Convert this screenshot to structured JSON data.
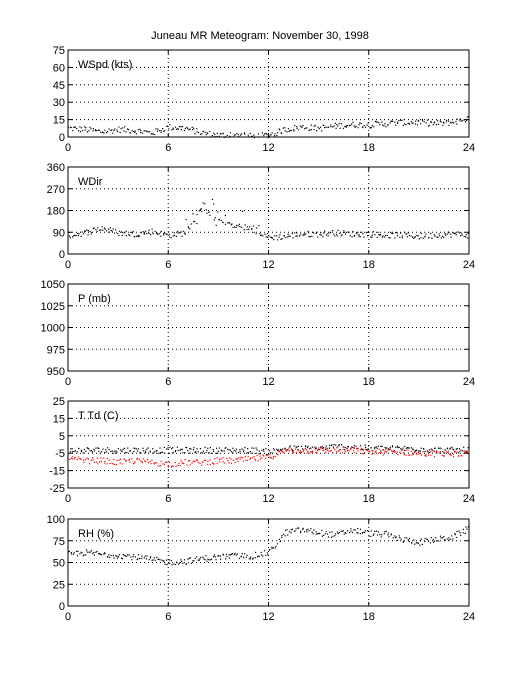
{
  "figure": {
    "title": "Juneau MR Meteogram:   November 30, 1998"
  },
  "chart_data": [
    {
      "type": "scatter",
      "label": "WSpd (kts)",
      "xlim": [
        0,
        24
      ],
      "xticks": [
        0,
        6,
        12,
        18,
        24
      ],
      "ylim": [
        0,
        75
      ],
      "yticks": [
        0,
        15,
        30,
        45,
        60,
        75
      ],
      "grid": true,
      "series": [
        {
          "color": "#000000",
          "x": [
            0,
            1,
            2,
            3,
            4,
            5,
            6,
            7,
            8,
            9,
            10,
            11,
            12,
            13,
            14,
            15,
            16,
            17,
            18,
            19,
            20,
            21,
            22,
            23,
            24
          ],
          "y": [
            8,
            7,
            5,
            7,
            6,
            4,
            9,
            8,
            4,
            2,
            2,
            1,
            2,
            7,
            9,
            8,
            10,
            11,
            11,
            12,
            13,
            13,
            12,
            13,
            17
          ]
        }
      ]
    },
    {
      "type": "scatter",
      "label": "WDir",
      "xlim": [
        0,
        24
      ],
      "xticks": [
        0,
        6,
        12,
        18,
        24
      ],
      "ylim": [
        0,
        360
      ],
      "yticks": [
        0,
        90,
        180,
        270,
        360
      ],
      "grid": true,
      "series": [
        {
          "color": "#000000",
          "x": [
            0,
            1,
            2,
            3,
            4,
            5,
            6,
            7,
            8,
            9,
            10,
            11,
            12,
            13,
            14,
            15,
            16,
            17,
            18,
            19,
            20,
            21,
            22,
            23,
            24
          ],
          "y": [
            80,
            90,
            110,
            90,
            85,
            95,
            80,
            90,
            190,
            140,
            120,
            110,
            70,
            75,
            85,
            85,
            90,
            85,
            85,
            80,
            80,
            75,
            80,
            85,
            80
          ]
        }
      ]
    },
    {
      "type": "scatter",
      "label": "P (mb)",
      "xlim": [
        0,
        24
      ],
      "xticks": [
        0,
        6,
        12,
        18,
        24
      ],
      "ylim": [
        950,
        1050
      ],
      "yticks": [
        950,
        975,
        1000,
        1025,
        1050
      ],
      "grid": true,
      "series": []
    },
    {
      "type": "scatter",
      "label": "T Td (C)",
      "xlim": [
        0,
        24
      ],
      "xticks": [
        0,
        6,
        12,
        18,
        24
      ],
      "ylim": [
        -25,
        25
      ],
      "yticks": [
        -25,
        -15,
        -5,
        5,
        15,
        25
      ],
      "grid": true,
      "series": [
        {
          "color": "#000000",
          "x": [
            0,
            1,
            2,
            3,
            4,
            5,
            6,
            7,
            8,
            9,
            10,
            11,
            12,
            13,
            14,
            15,
            16,
            17,
            18,
            19,
            20,
            21,
            22,
            23,
            24
          ],
          "y": [
            -3,
            -3,
            -3,
            -3,
            -3,
            -3,
            -3,
            -3,
            -3,
            -3,
            -3,
            -3,
            -4,
            -2,
            -2,
            -2,
            -1,
            -1,
            -2,
            -2,
            -2,
            -2,
            -3,
            -3,
            -3
          ]
        },
        {
          "color": "#ff0000",
          "x": [
            0,
            1,
            2,
            3,
            4,
            5,
            6,
            7,
            8,
            9,
            10,
            11,
            12,
            13,
            14,
            15,
            16,
            17,
            18,
            19,
            20,
            21,
            22,
            23,
            24
          ],
          "y": [
            -8,
            -9,
            -9,
            -10,
            -9,
            -10,
            -11,
            -10,
            -10,
            -9,
            -9,
            -8,
            -7,
            -3,
            -3,
            -3,
            -3,
            -3,
            -4,
            -4,
            -4,
            -5,
            -5,
            -5,
            -5
          ]
        }
      ]
    },
    {
      "type": "scatter",
      "label": "RH (%)",
      "xlim": [
        0,
        24
      ],
      "xticks": [
        0,
        6,
        12,
        18,
        24
      ],
      "ylim": [
        0,
        100
      ],
      "yticks": [
        0,
        25,
        50,
        75,
        100
      ],
      "grid": true,
      "series": [
        {
          "color": "#000000",
          "x": [
            0,
            1,
            2,
            3,
            4,
            5,
            6,
            7,
            8,
            9,
            10,
            11,
            12,
            13,
            14,
            15,
            16,
            17,
            18,
            19,
            20,
            21,
            22,
            23,
            24
          ],
          "y": [
            60,
            62,
            60,
            59,
            57,
            54,
            51,
            52,
            55,
            57,
            58,
            58,
            62,
            85,
            88,
            85,
            82,
            88,
            84,
            83,
            77,
            74,
            77,
            80,
            90
          ]
        }
      ]
    }
  ]
}
